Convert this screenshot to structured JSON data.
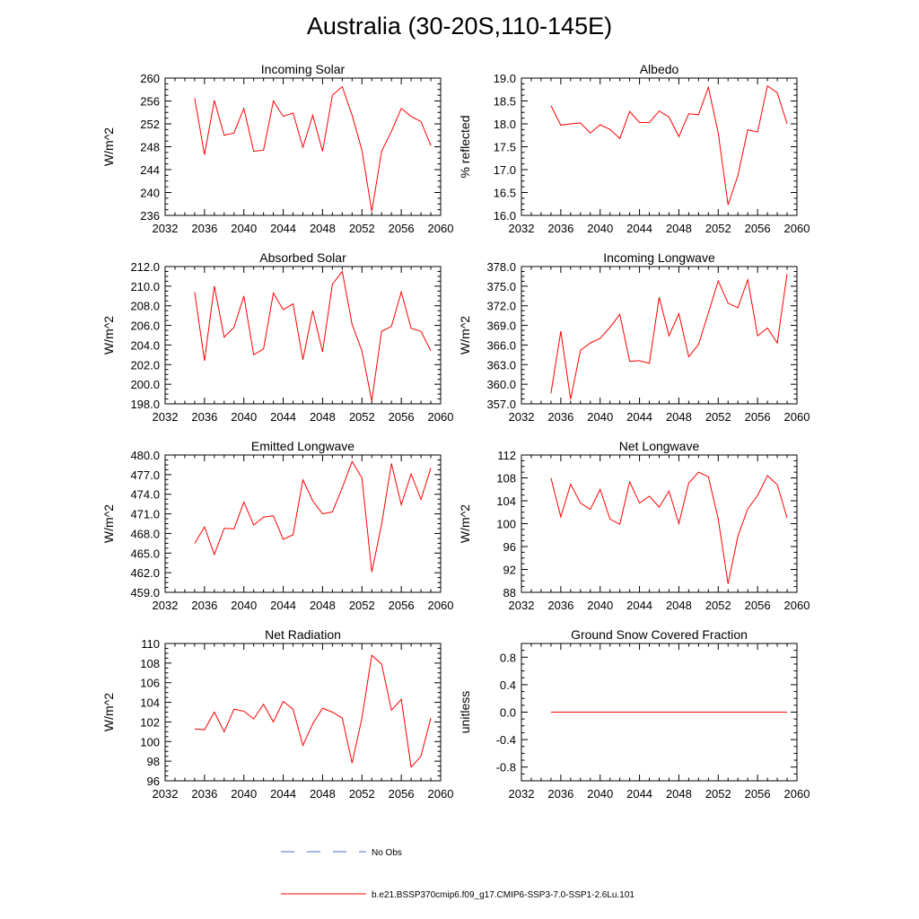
{
  "title": "Australia (30-20S,110-145E)",
  "legend": {
    "entries": [
      {
        "label": "No Obs",
        "color": "#4a6fd1",
        "style": "dashed"
      },
      {
        "label": "b.e21.BSSP370cmip6.f09_g17.CMIP6-SSP3-7.0-SSP1-2.6Lu.101",
        "color": "#ff0000",
        "style": "solid"
      }
    ]
  },
  "chart_data": [
    {
      "type": "line",
      "title": "Incoming Solar",
      "ylabel": "W/m^2",
      "xlim": [
        2032,
        2060
      ],
      "ylim": [
        236,
        260
      ],
      "xticks": [
        "2032",
        "2036",
        "2040",
        "2044",
        "2048",
        "2052",
        "2056",
        "2060"
      ],
      "yticks": [
        "236",
        "240",
        "244",
        "248",
        "252",
        "256",
        "260"
      ],
      "series": [
        {
          "color": "#ff0000",
          "x": [
            2035,
            2036,
            2037,
            2038,
            2039,
            2040,
            2041,
            2042,
            2043,
            2044,
            2045,
            2046,
            2047,
            2048,
            2049,
            2050,
            2051,
            2052,
            2053,
            2054,
            2055,
            2056,
            2057,
            2058,
            2059
          ],
          "values": [
            256.5,
            246.6,
            256.1,
            250.0,
            250.4,
            254.7,
            247.2,
            247.4,
            256.0,
            253.3,
            253.9,
            247.9,
            253.5,
            247.2,
            257.0,
            258.5,
            253.5,
            247.4,
            236.7,
            247.2,
            250.7,
            254.7,
            253.3,
            252.4,
            248.2
          ]
        }
      ]
    },
    {
      "type": "line",
      "title": "Albedo",
      "ylabel": "% reflected",
      "xlim": [
        2032,
        2060
      ],
      "ylim": [
        16.0,
        19.0
      ],
      "xticks": [
        "2032",
        "2036",
        "2040",
        "2044",
        "2048",
        "2052",
        "2056",
        "2060"
      ],
      "yticks": [
        "16.0",
        "16.5",
        "17.0",
        "17.5",
        "18.0",
        "18.5",
        "19.0"
      ],
      "series": [
        {
          "color": "#ff0000",
          "x": [
            2035,
            2036,
            2037,
            2038,
            2039,
            2040,
            2041,
            2042,
            2043,
            2044,
            2045,
            2046,
            2047,
            2048,
            2049,
            2050,
            2051,
            2052,
            2053,
            2054,
            2055,
            2056,
            2057,
            2058,
            2059
          ],
          "values": [
            18.4,
            17.97,
            18.0,
            18.02,
            17.8,
            17.98,
            17.88,
            17.68,
            18.27,
            18.03,
            18.03,
            18.28,
            18.15,
            17.72,
            18.22,
            18.2,
            18.8,
            17.8,
            16.23,
            16.87,
            17.87,
            17.82,
            18.83,
            18.68,
            18.0
          ]
        }
      ]
    },
    {
      "type": "line",
      "title": "Absorbed Solar",
      "ylabel": "W/m^2",
      "xlim": [
        2032,
        2060
      ],
      "ylim": [
        198.0,
        212.0
      ],
      "xticks": [
        "2032",
        "2036",
        "2040",
        "2044",
        "2048",
        "2052",
        "2056",
        "2060"
      ],
      "yticks": [
        "198.0",
        "200.0",
        "202.0",
        "204.0",
        "206.0",
        "208.0",
        "210.0",
        "212.0"
      ],
      "series": [
        {
          "color": "#ff0000",
          "x": [
            2035,
            2036,
            2037,
            2038,
            2039,
            2040,
            2041,
            2042,
            2043,
            2044,
            2045,
            2046,
            2047,
            2048,
            2049,
            2050,
            2051,
            2052,
            2053,
            2054,
            2055,
            2056,
            2057,
            2058,
            2059
          ],
          "values": [
            209.4,
            202.4,
            210.0,
            204.8,
            205.8,
            209.0,
            203.0,
            203.6,
            209.3,
            207.6,
            208.2,
            202.5,
            207.5,
            203.3,
            210.2,
            211.5,
            206.1,
            203.4,
            198.3,
            205.4,
            205.9,
            209.4,
            205.7,
            205.4,
            203.4
          ]
        }
      ]
    },
    {
      "type": "line",
      "title": "Incoming Longwave",
      "ylabel": "W/m^2",
      "xlim": [
        2032,
        2060
      ],
      "ylim": [
        357.0,
        378.0
      ],
      "xticks": [
        "2032",
        "2036",
        "2040",
        "2044",
        "2048",
        "2052",
        "2056",
        "2060"
      ],
      "yticks": [
        "357.0",
        "360.0",
        "363.0",
        "366.0",
        "369.0",
        "372.0",
        "375.0",
        "378.0"
      ],
      "series": [
        {
          "color": "#ff0000",
          "x": [
            2035,
            2036,
            2037,
            2038,
            2039,
            2040,
            2041,
            2042,
            2043,
            2044,
            2045,
            2046,
            2047,
            2048,
            2049,
            2050,
            2051,
            2052,
            2053,
            2054,
            2055,
            2056,
            2057,
            2058,
            2059
          ],
          "values": [
            358.6,
            368.1,
            357.7,
            365.2,
            366.3,
            367.0,
            368.7,
            370.7,
            363.5,
            363.6,
            363.2,
            373.3,
            367.4,
            370.8,
            364.2,
            366.1,
            370.9,
            375.8,
            372.4,
            371.7,
            376.0,
            367.4,
            368.6,
            366.3,
            376.9
          ]
        }
      ]
    },
    {
      "type": "line",
      "title": "Emitted Longwave",
      "ylabel": "W/m^2",
      "xlim": [
        2032,
        2060
      ],
      "ylim": [
        459.0,
        480.0
      ],
      "xticks": [
        "2032",
        "2036",
        "2040",
        "2044",
        "2048",
        "2052",
        "2056",
        "2060"
      ],
      "yticks": [
        "459.0",
        "462.0",
        "465.0",
        "468.0",
        "471.0",
        "474.0",
        "477.0",
        "480.0"
      ],
      "series": [
        {
          "color": "#ff0000",
          "x": [
            2035,
            2036,
            2037,
            2038,
            2039,
            2040,
            2041,
            2042,
            2043,
            2044,
            2045,
            2046,
            2047,
            2048,
            2049,
            2050,
            2051,
            2052,
            2053,
            2054,
            2055,
            2056,
            2057,
            2058,
            2059
          ],
          "values": [
            466.5,
            469.0,
            464.8,
            468.8,
            468.7,
            472.8,
            469.3,
            470.5,
            470.7,
            467.1,
            467.8,
            476.2,
            473.0,
            471.0,
            471.3,
            475.0,
            479.0,
            476.5,
            462.1,
            469.4,
            478.7,
            472.4,
            477.1,
            473.2,
            478.0
          ]
        }
      ]
    },
    {
      "type": "line",
      "title": "Net Longwave",
      "ylabel": "W/m^2",
      "xlim": [
        2032,
        2060
      ],
      "ylim": [
        88,
        112
      ],
      "xticks": [
        "2032",
        "2036",
        "2040",
        "2044",
        "2048",
        "2052",
        "2056",
        "2060"
      ],
      "yticks": [
        "88",
        "92",
        "96",
        "100",
        "104",
        "108",
        "112"
      ],
      "series": [
        {
          "color": "#ff0000",
          "x": [
            2035,
            2036,
            2037,
            2038,
            2039,
            2040,
            2041,
            2042,
            2043,
            2044,
            2045,
            2046,
            2047,
            2048,
            2049,
            2050,
            2051,
            2052,
            2053,
            2054,
            2055,
            2056,
            2057,
            2058,
            2059
          ],
          "values": [
            108.0,
            101.2,
            106.9,
            103.6,
            102.5,
            106.0,
            100.8,
            99.9,
            107.3,
            103.6,
            104.8,
            102.9,
            105.7,
            100.0,
            107.1,
            109.0,
            108.2,
            100.8,
            89.5,
            97.8,
            102.6,
            104.9,
            108.4,
            106.8,
            101.0
          ]
        }
      ]
    },
    {
      "type": "line",
      "title": "Net Radiation",
      "ylabel": "W/m^2",
      "xlim": [
        2032,
        2060
      ],
      "ylim": [
        96,
        110
      ],
      "xticks": [
        "2032",
        "2036",
        "2040",
        "2044",
        "2048",
        "2052",
        "2056",
        "2060"
      ],
      "yticks": [
        "96",
        "98",
        "100",
        "102",
        "104",
        "106",
        "108",
        "110"
      ],
      "series": [
        {
          "color": "#ff0000",
          "x": [
            2035,
            2036,
            2037,
            2038,
            2039,
            2040,
            2041,
            2042,
            2043,
            2044,
            2045,
            2046,
            2047,
            2048,
            2049,
            2050,
            2051,
            2052,
            2053,
            2054,
            2055,
            2056,
            2057,
            2058,
            2059
          ],
          "values": [
            101.3,
            101.2,
            103.0,
            101.0,
            103.3,
            103.1,
            102.3,
            103.8,
            102.0,
            104.1,
            103.3,
            99.6,
            101.8,
            103.4,
            103.0,
            102.4,
            97.8,
            102.4,
            108.8,
            107.9,
            103.2,
            104.3,
            97.4,
            98.5,
            102.4
          ]
        }
      ]
    },
    {
      "type": "line",
      "title": "Ground Snow Covered Fraction",
      "ylabel": "unitless",
      "xlim": [
        2032,
        2060
      ],
      "ylim": [
        -1.0,
        1.0
      ],
      "xticks": [
        "2032",
        "2036",
        "2040",
        "2044",
        "2048",
        "2052",
        "2056",
        "2060"
      ],
      "yticks": [
        "-0.8",
        "-0.4",
        "0.0",
        "0.4",
        "0.8"
      ],
      "series": [
        {
          "color": "#ff0000",
          "x": [
            2035,
            2036,
            2037,
            2038,
            2039,
            2040,
            2041,
            2042,
            2043,
            2044,
            2045,
            2046,
            2047,
            2048,
            2049,
            2050,
            2051,
            2052,
            2053,
            2054,
            2055,
            2056,
            2057,
            2058,
            2059
          ],
          "values": [
            0,
            0,
            0,
            0,
            0,
            0,
            0,
            0,
            0,
            0,
            0,
            0,
            0,
            0,
            0,
            0,
            0,
            0,
            0,
            0,
            0,
            0,
            0,
            0,
            0
          ]
        }
      ]
    }
  ]
}
